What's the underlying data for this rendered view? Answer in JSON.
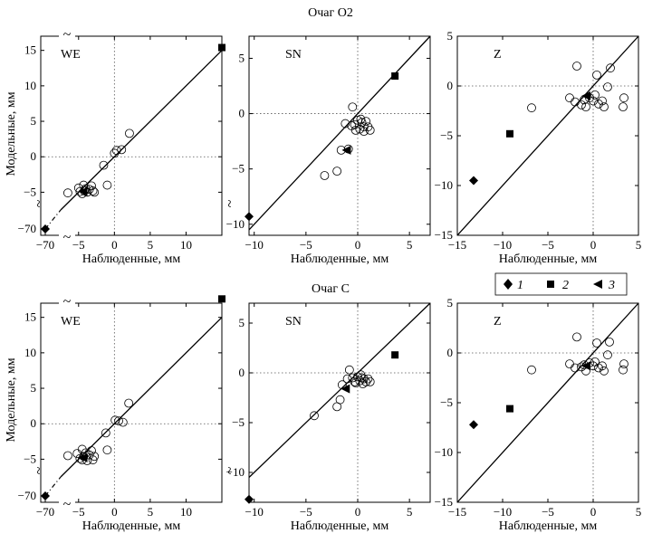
{
  "figure": {
    "row_titles": [
      "Очаг O2",
      "Очаг C"
    ],
    "xlabel": "Наблюденные, мм",
    "ylabel": "Модельные, мм",
    "break_mark": "~",
    "legend": [
      {
        "marker": "diamond",
        "label": "1"
      },
      {
        "marker": "square",
        "label": "2"
      },
      {
        "marker": "triangle-left",
        "label": "3"
      }
    ]
  },
  "chart_data": [
    {
      "type": "scatter",
      "row": 0,
      "col": 0,
      "title": "WE",
      "xlim": [
        -7.5,
        15
      ],
      "ylim": [
        -7.5,
        17
      ],
      "xticks": [
        {
          "v": -5,
          "label": "−5"
        },
        {
          "v": 0,
          "label": "0"
        },
        {
          "v": 5,
          "label": "5"
        },
        {
          "v": 10,
          "label": "10"
        }
      ],
      "extra_xtick": {
        "label": "−70"
      },
      "yticks": [
        {
          "v": -5,
          "label": "−5"
        },
        {
          "v": 0,
          "label": "0"
        },
        {
          "v": 5,
          "label": "5"
        },
        {
          "v": 10,
          "label": "10"
        },
        {
          "v": 15,
          "label": "15"
        }
      ],
      "extra_ytick": {
        "label": "−70"
      },
      "circles": [
        [
          -4.8,
          -4.9
        ],
        [
          -4.5,
          -5.2
        ],
        [
          -4.2,
          -4.8
        ],
        [
          -4.0,
          -4.5
        ],
        [
          -3.8,
          -5.0
        ],
        [
          -3.5,
          -4.6
        ],
        [
          -3.2,
          -4.1
        ],
        [
          -3.0,
          -4.8
        ],
        [
          -5.0,
          -4.4
        ],
        [
          -4.3,
          -4.0
        ],
        [
          -6.5,
          -5.1
        ],
        [
          -2.8,
          -5.0
        ],
        [
          -1.0,
          -4.0
        ],
        [
          -1.5,
          -1.2
        ],
        [
          0,
          0.5
        ],
        [
          0.3,
          0.9
        ],
        [
          1,
          1
        ],
        [
          2.1,
          3.3
        ]
      ],
      "squares": [
        [
          15,
          15.4
        ]
      ],
      "triangles": [
        [
          -4.4,
          -4.9
        ]
      ],
      "diamonds_offscale": [
        {
          "x_label": "−70",
          "y_label": "−70"
        }
      ],
      "line": {
        "p1": [
          -7.5,
          -7.5
        ],
        "p2": [
          15,
          15
        ]
      }
    },
    {
      "type": "scatter",
      "row": 0,
      "col": 1,
      "title": "SN",
      "xlim": [
        -10.5,
        7
      ],
      "ylim": [
        -11,
        7
      ],
      "xticks": [
        {
          "v": -10,
          "label": "−10"
        },
        {
          "v": -5,
          "label": "−5"
        },
        {
          "v": 0,
          "label": "0"
        },
        {
          "v": 5,
          "label": "5"
        }
      ],
      "yticks": [
        {
          "v": -10,
          "label": "−10"
        },
        {
          "v": -5,
          "label": "−5"
        },
        {
          "v": 0,
          "label": "0"
        },
        {
          "v": 5,
          "label": "5"
        }
      ],
      "circles": [
        [
          -3.2,
          -5.6
        ],
        [
          -2.0,
          -5.2
        ],
        [
          -1.6,
          -3.3
        ],
        [
          -0.9,
          -3.2
        ],
        [
          -0.5,
          0.6
        ],
        [
          -1.2,
          -0.9
        ],
        [
          -0.3,
          -1.0
        ],
        [
          0,
          -0.6
        ],
        [
          0.2,
          -1.4
        ],
        [
          0.4,
          -0.8
        ],
        [
          0.6,
          -1.2
        ],
        [
          0.8,
          -0.7
        ],
        [
          1.0,
          -1.2
        ],
        [
          -0.2,
          -1.5
        ],
        [
          0.3,
          -0.5
        ],
        [
          1.2,
          -1.5
        ],
        [
          0.6,
          -1.6
        ],
        [
          -0.6,
          -1.1
        ]
      ],
      "squares": [
        [
          3.6,
          3.4
        ]
      ],
      "triangles": [
        [
          -1.1,
          -3.3
        ]
      ],
      "diamonds": [
        [
          -10.5,
          -9.3
        ]
      ],
      "line": {
        "p1": [
          -10.5,
          -10.5
        ],
        "p2": [
          7,
          7
        ]
      }
    },
    {
      "type": "scatter",
      "row": 0,
      "col": 2,
      "title": "Z",
      "xlim": [
        -15,
        5
      ],
      "ylim": [
        -15,
        5
      ],
      "xticks": [
        {
          "v": -15,
          "label": "−15"
        },
        {
          "v": -10,
          "label": "−10"
        },
        {
          "v": -5,
          "label": "−5"
        },
        {
          "v": 0,
          "label": "0"
        },
        {
          "v": 5,
          "label": "5"
        }
      ],
      "yticks": [
        {
          "v": -15,
          "label": "−15"
        },
        {
          "v": -10,
          "label": "−10"
        },
        {
          "v": -5,
          "label": "−5"
        },
        {
          "v": 0,
          "label": "0"
        },
        {
          "v": 5,
          "label": "5"
        }
      ],
      "circles": [
        [
          -6.8,
          -2.2
        ],
        [
          -2.6,
          -1.2
        ],
        [
          -2.0,
          -1.6
        ],
        [
          -1.8,
          2.0
        ],
        [
          -1.3,
          -1.9
        ],
        [
          -1.0,
          -1.4
        ],
        [
          -0.8,
          -2.1
        ],
        [
          -0.4,
          -1.2
        ],
        [
          0,
          -1.5
        ],
        [
          0.2,
          -0.9
        ],
        [
          0.4,
          1.1
        ],
        [
          0.6,
          -1.8
        ],
        [
          1.0,
          -1.5
        ],
        [
          1.2,
          -2.1
        ],
        [
          1.6,
          -0.1
        ],
        [
          1.9,
          1.8
        ],
        [
          3.3,
          -2.1
        ],
        [
          3.4,
          -1.2
        ]
      ],
      "squares": [
        [
          -9.2,
          -4.8
        ]
      ],
      "triangles": [
        [
          -0.8,
          -1.0
        ]
      ],
      "diamonds": [
        [
          -13.2,
          -9.5
        ]
      ],
      "line": {
        "p1": [
          -15,
          -15
        ],
        "p2": [
          5,
          5
        ]
      }
    },
    {
      "type": "scatter",
      "row": 1,
      "col": 0,
      "title": "WE",
      "xlim": [
        -7.5,
        15
      ],
      "ylim": [
        -7.5,
        17
      ],
      "xticks": [
        {
          "v": -5,
          "label": "−5"
        },
        {
          "v": 0,
          "label": "0"
        },
        {
          "v": 5,
          "label": "5"
        },
        {
          "v": 10,
          "label": "10"
        }
      ],
      "extra_xtick": {
        "label": "−70"
      },
      "yticks": [
        {
          "v": -5,
          "label": "−5"
        },
        {
          "v": 0,
          "label": "0"
        },
        {
          "v": 5,
          "label": "5"
        },
        {
          "v": 10,
          "label": "10"
        },
        {
          "v": 15,
          "label": "15"
        }
      ],
      "extra_ytick": {
        "label": "−70"
      },
      "circles": [
        [
          -4.8,
          -4.9
        ],
        [
          -4.5,
          -5.1
        ],
        [
          -4.3,
          -4.6
        ],
        [
          -4.0,
          -4.1
        ],
        [
          -3.8,
          -5.2
        ],
        [
          -3.5,
          -4.4
        ],
        [
          -3.2,
          -3.8
        ],
        [
          -3.0,
          -5.1
        ],
        [
          -5.2,
          -4.2
        ],
        [
          -4.5,
          -3.6
        ],
        [
          -6.5,
          -4.5
        ],
        [
          -2.8,
          -4.6
        ],
        [
          -1.0,
          -3.7
        ],
        [
          -1.2,
          -1.3
        ],
        [
          0.1,
          0.5
        ],
        [
          0.6,
          0.4
        ],
        [
          1.2,
          0.2
        ],
        [
          2.0,
          2.9
        ]
      ],
      "squares": [
        [
          15,
          17.6
        ]
      ],
      "triangles": [
        [
          -4.4,
          -4.8
        ]
      ],
      "diamonds_offscale": [
        {
          "x_label": "−70",
          "y_label": "−70"
        }
      ],
      "line": {
        "p1": [
          -7.5,
          -7.5
        ],
        "p2": [
          15,
          15
        ]
      }
    },
    {
      "type": "scatter",
      "row": 1,
      "col": 1,
      "title": "SN",
      "xlim": [
        -10.5,
        7
      ],
      "ylim": [
        -13,
        7
      ],
      "xticks": [
        {
          "v": -10,
          "label": "−10"
        },
        {
          "v": -5,
          "label": "−5"
        },
        {
          "v": 0,
          "label": "0"
        },
        {
          "v": 5,
          "label": "5"
        }
      ],
      "yticks": [
        {
          "v": -10,
          "label": "−10"
        },
        {
          "v": -5,
          "label": "−5"
        },
        {
          "v": 0,
          "label": "0"
        },
        {
          "v": 5,
          "label": "5"
        }
      ],
      "circles": [
        [
          -4.2,
          -4.3
        ],
        [
          -2.0,
          -3.4
        ],
        [
          -1.7,
          -2.7
        ],
        [
          -1.0,
          -0.6
        ],
        [
          -0.8,
          0.3
        ],
        [
          -1.5,
          -1.2
        ],
        [
          -0.3,
          -0.9
        ],
        [
          0,
          -0.4
        ],
        [
          0.2,
          -0.8
        ],
        [
          0.4,
          -0.5
        ],
        [
          0.6,
          -0.6
        ],
        [
          0.8,
          -0.9
        ],
        [
          1.0,
          -0.6
        ],
        [
          -0.2,
          -1.0
        ],
        [
          0.3,
          -0.2
        ],
        [
          1.2,
          -0.9
        ],
        [
          -0.5,
          -0.5
        ],
        [
          0.5,
          -1.1
        ]
      ],
      "squares": [
        [
          3.6,
          1.8
        ]
      ],
      "triangles": [
        [
          -1.2,
          -1.6
        ]
      ],
      "diamonds": [
        [
          -10.5,
          -12.7
        ]
      ],
      "line": {
        "p1": [
          -10.5,
          -10.5
        ],
        "p2": [
          7,
          7
        ]
      }
    },
    {
      "type": "scatter",
      "row": 1,
      "col": 2,
      "title": "Z",
      "xlim": [
        -15,
        5
      ],
      "ylim": [
        -15,
        5
      ],
      "xticks": [
        {
          "v": -15,
          "label": "−15"
        },
        {
          "v": -10,
          "label": "−10"
        },
        {
          "v": -5,
          "label": "−5"
        },
        {
          "v": 0,
          "label": "0"
        },
        {
          "v": 5,
          "label": "5"
        }
      ],
      "yticks": [
        {
          "v": -15,
          "label": "−15"
        },
        {
          "v": -10,
          "label": "−10"
        },
        {
          "v": -5,
          "label": "−5"
        },
        {
          "v": 0,
          "label": "0"
        },
        {
          "v": 5,
          "label": "5"
        }
      ],
      "circles": [
        [
          -6.8,
          -1.7
        ],
        [
          -2.6,
          -1.1
        ],
        [
          -2.0,
          -1.5
        ],
        [
          -1.8,
          1.6
        ],
        [
          -1.3,
          -1.4
        ],
        [
          -1.0,
          -1.2
        ],
        [
          -0.8,
          -1.8
        ],
        [
          -0.4,
          -1.0
        ],
        [
          0,
          -1.3
        ],
        [
          0.2,
          -0.9
        ],
        [
          0.4,
          1.0
        ],
        [
          0.6,
          -1.5
        ],
        [
          1.0,
          -1.3
        ],
        [
          1.2,
          -1.8
        ],
        [
          1.6,
          -0.2
        ],
        [
          1.8,
          1.1
        ],
        [
          3.3,
          -1.7
        ],
        [
          3.4,
          -1.1
        ]
      ],
      "squares": [
        [
          -9.2,
          -5.6
        ]
      ],
      "triangles": [
        [
          -0.8,
          -1.3
        ]
      ],
      "diamonds": [
        [
          -13.2,
          -7.2
        ]
      ],
      "line": {
        "p1": [
          -15,
          -15
        ],
        "p2": [
          5,
          5
        ]
      }
    }
  ]
}
